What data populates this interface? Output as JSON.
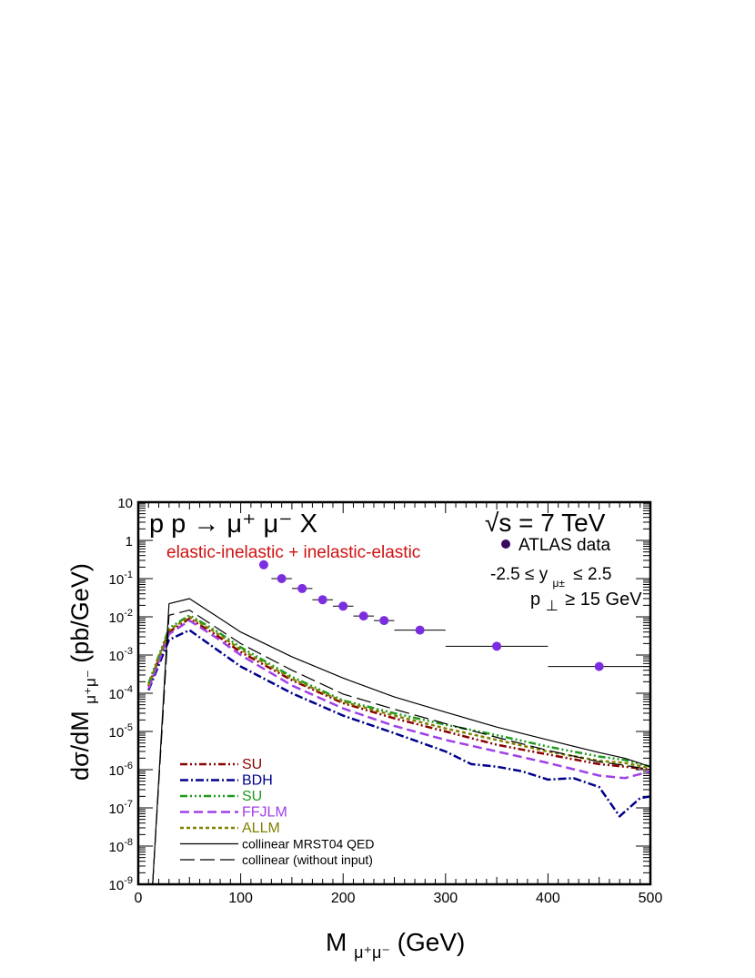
{
  "chart_data": {
    "type": "line",
    "title": "p p → μ⁺ μ⁻ X",
    "subtitle": "elastic-inelastic + inelastic-elastic",
    "energy_label": "√s = 7 TeV",
    "cuts": [
      "-2.5 ≤ y",
      "μ±",
      "≤ 2.5",
      "p",
      "⊥",
      "≥ 15 GeV"
    ],
    "xlabel": {
      "main": "M",
      "sub": "μ⁺μ⁻",
      "rest": " (GeV)"
    },
    "ylabel": {
      "main": "dσ/dM",
      "sub": "μ⁺μ⁻",
      "rest": " (pb/GeV)"
    },
    "xlim": [
      0,
      500
    ],
    "ylim": [
      1e-09,
      10
    ],
    "yscale": "log",
    "xticks": [
      0,
      100,
      200,
      300,
      400,
      500
    ],
    "ytick_labels": [
      {
        "v": 1e-09,
        "base": "10",
        "exp": "-9"
      },
      {
        "v": 1e-08,
        "base": "10",
        "exp": "-8"
      },
      {
        "v": 1e-07,
        "base": "10",
        "exp": "-7"
      },
      {
        "v": 1e-06,
        "base": "10",
        "exp": "-6"
      },
      {
        "v": 1e-05,
        "base": "10",
        "exp": "-5"
      },
      {
        "v": 0.0001,
        "base": "10",
        "exp": "-4"
      },
      {
        "v": 0.001,
        "base": "10",
        "exp": "-3"
      },
      {
        "v": 0.01,
        "base": "10",
        "exp": "-2"
      },
      {
        "v": 0.1,
        "base": "10",
        "exp": "-1"
      },
      {
        "v": 1,
        "base": "1",
        "exp": ""
      },
      {
        "v": 10,
        "base": "10",
        "exp": ""
      }
    ],
    "series": [
      {
        "name": "SU",
        "color": "#8b0000",
        "dash": "8,3,2,3,2,3",
        "width": 2.5,
        "x": [
          10,
          30,
          50,
          75,
          100,
          150,
          200,
          250,
          300,
          350,
          400,
          450,
          475,
          500
        ],
        "y": [
          0.00015,
          0.004,
          0.009,
          0.0035,
          0.0012,
          0.00022,
          5.5e-05,
          2.2e-05,
          1e-05,
          4.5e-06,
          2.5e-06,
          1.4e-06,
          1.2e-06,
          1e-06
        ]
      },
      {
        "name": "BDH",
        "color": "#00008b",
        "dash": "9,3,2,3",
        "width": 2.5,
        "x": [
          10,
          30,
          50,
          75,
          100,
          150,
          200,
          250,
          300,
          325,
          350,
          375,
          400,
          425,
          450,
          470,
          490,
          500
        ],
        "y": [
          0.00012,
          0.0025,
          0.0045,
          0.0015,
          0.0005,
          0.0001,
          2.6e-05,
          9e-06,
          3e-06,
          1.4e-06,
          1.2e-06,
          9e-07,
          5.5e-07,
          6e-07,
          3.5e-07,
          6e-08,
          1.8e-07,
          2e-07
        ]
      },
      {
        "name": "SU",
        "color": "#1e9a1e",
        "dash": "8,3,2,3,2,3,2,3",
        "width": 2.5,
        "x": [
          10,
          30,
          50,
          75,
          100,
          150,
          200,
          250,
          300,
          350,
          400,
          450,
          475,
          500
        ],
        "y": [
          0.00018,
          0.005,
          0.011,
          0.0045,
          0.0016,
          0.00027,
          6.5e-05,
          3e-05,
          1.5e-05,
          8e-06,
          4e-06,
          2.2e-06,
          1.8e-06,
          1.2e-06
        ]
      },
      {
        "name": "FFJLM",
        "color": "#a040e8",
        "dash": "10,5",
        "width": 2.5,
        "x": [
          10,
          30,
          50,
          75,
          100,
          150,
          200,
          250,
          300,
          350,
          400,
          450,
          475,
          500
        ],
        "y": [
          0.00013,
          0.0035,
          0.008,
          0.003,
          0.001,
          0.00016,
          4e-05,
          1.4e-05,
          6e-06,
          3e-06,
          1.5e-06,
          7e-07,
          6e-07,
          9e-07
        ]
      },
      {
        "name": "ALLM",
        "color": "#808000",
        "dash": "4,3",
        "width": 2.5,
        "x": [
          10,
          30,
          50,
          75,
          100,
          150,
          200,
          250,
          300,
          350,
          400,
          450,
          475,
          500
        ],
        "y": [
          0.00016,
          0.0045,
          0.01,
          0.004,
          0.0014,
          0.00024,
          6e-05,
          2.6e-05,
          1.2e-05,
          6e-06,
          3e-06,
          1.7e-06,
          1.5e-06,
          1.1e-06
        ]
      },
      {
        "name": "collinear MRST04 QED",
        "color": "#000000",
        "dash": "",
        "width": 1.2,
        "x": [
          14,
          30,
          50,
          75,
          100,
          150,
          200,
          250,
          300,
          350,
          400,
          450,
          475,
          500
        ],
        "y": [
          1e-09,
          0.022,
          0.03,
          0.011,
          0.004,
          0.0009,
          0.00025,
          8e-05,
          3.2e-05,
          1.3e-05,
          6e-06,
          2.8e-06,
          2e-06,
          1.2e-06
        ]
      },
      {
        "name": "collinear (without input)",
        "color": "#000000",
        "dash": "16,6",
        "width": 1.2,
        "x": [
          14,
          30,
          50,
          75,
          100,
          150,
          200,
          250,
          300,
          350,
          400,
          450,
          475,
          500
        ],
        "y": [
          1e-09,
          0.011,
          0.015,
          0.0055,
          0.002,
          0.0004,
          9.5e-05,
          3.8e-05,
          1.6e-05,
          7e-06,
          3.2e-06,
          1.6e-06,
          1.3e-06,
          1e-06
        ]
      },
      {
        "name": "ATLAS data",
        "type": "errorbar",
        "color": "#7b2ee0",
        "points": [
          {
            "x": 122.5,
            "xerr": 2.5,
            "y": 0.23
          },
          {
            "x": 140,
            "xerr": 10,
            "y": 0.1
          },
          {
            "x": 160,
            "xerr": 10,
            "y": 0.055
          },
          {
            "x": 180,
            "xerr": 10,
            "y": 0.028
          },
          {
            "x": 200,
            "xerr": 10,
            "y": 0.019
          },
          {
            "x": 220,
            "xerr": 10,
            "y": 0.0105
          },
          {
            "x": 240,
            "xerr": 10,
            "y": 0.008
          },
          {
            "x": 275,
            "xerr": 25,
            "y": 0.0045
          },
          {
            "x": 350,
            "xerr": 50,
            "y": 0.0017
          },
          {
            "x": 450,
            "xerr": 50,
            "y": 0.0005
          }
        ]
      }
    ],
    "legend_data_label": "ATLAS data",
    "legend_data_marker_color": "#3a0a5e",
    "legend_lines": [
      0,
      1,
      2,
      3,
      4,
      5,
      6
    ]
  }
}
